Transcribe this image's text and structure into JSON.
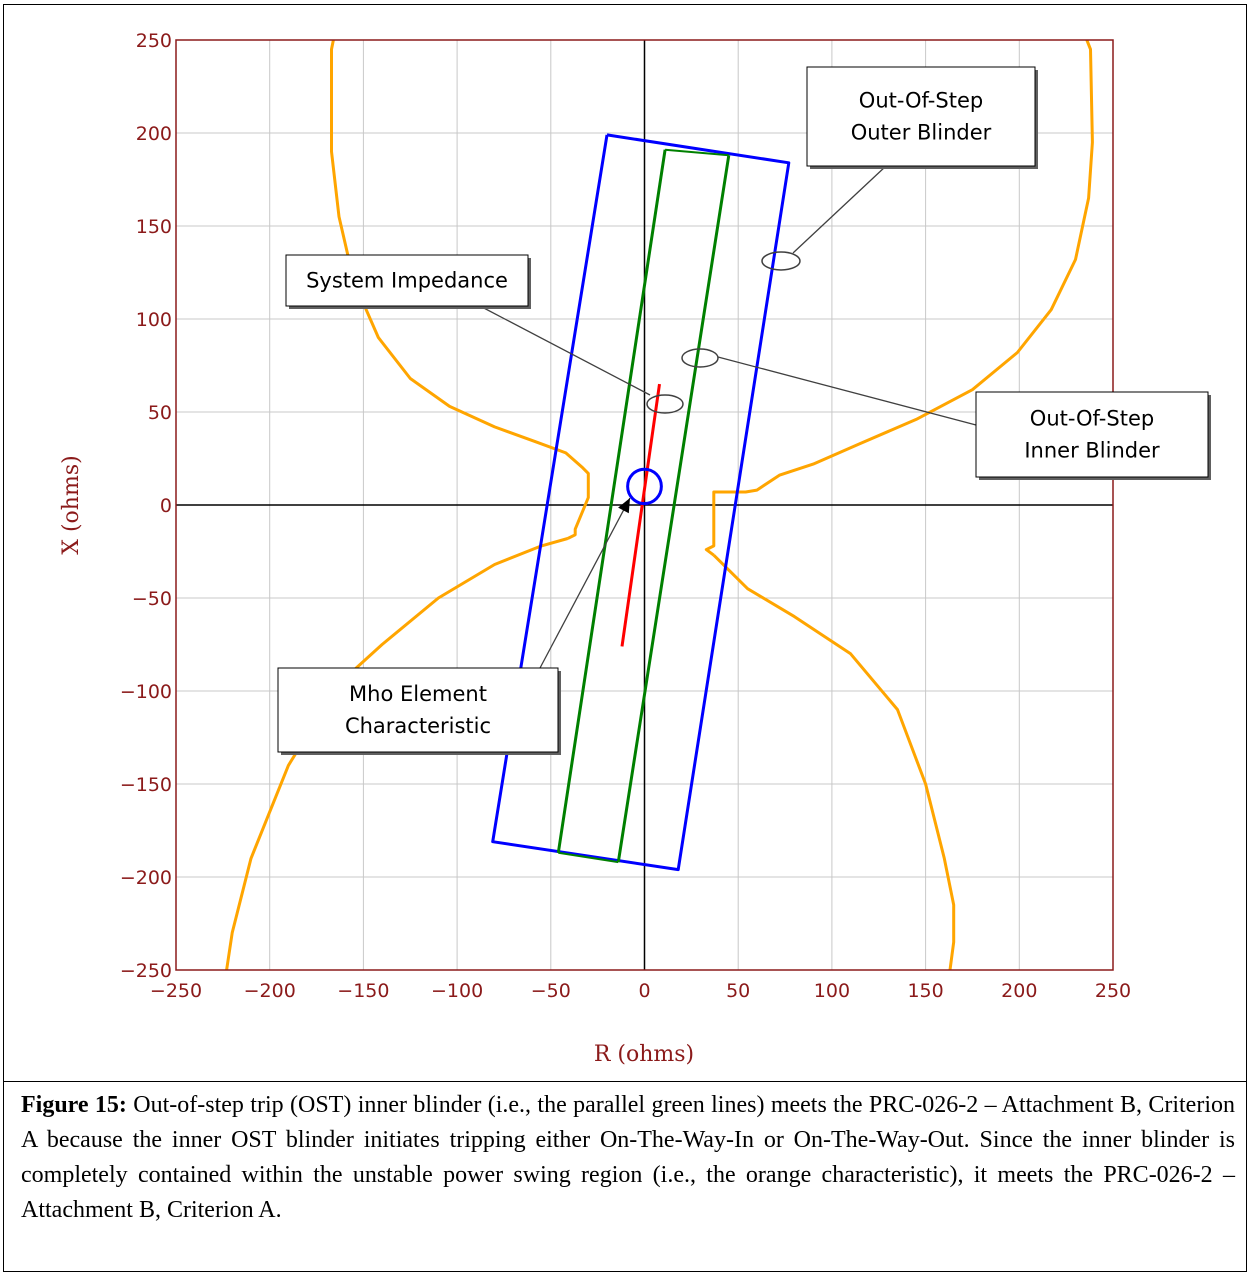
{
  "chart_data": {
    "type": "line",
    "title": "",
    "xlabel": "R (ohms)",
    "ylabel": "X (ohms)",
    "xlim": [
      -250,
      250
    ],
    "ylim": [
      -250,
      250
    ],
    "x_ticks": [
      "−250",
      "−200",
      "−150",
      "−100",
      "−50",
      "0",
      "50",
      "100",
      "150",
      "200",
      "250"
    ],
    "y_ticks": [
      "250",
      "200",
      "150",
      "100",
      "50",
      "0",
      "−50",
      "−100",
      "−150",
      "−200",
      "−250"
    ],
    "grid": true,
    "colors": {
      "unstable_region": "#FFA500",
      "outer_blinder": "#0000FF",
      "inner_blinder": "#008000",
      "system_impedance": "#FF0000",
      "mho": "#0000FF",
      "plot_border": "#8B1A1A",
      "grid": "#C8C8C8"
    },
    "series": [
      {
        "key": "unstable_upper",
        "x": [
          -166,
          -167,
          -167,
          -163,
          -155,
          -142,
          -125,
          -104,
          -80,
          -58,
          -42,
          -33,
          -30,
          -30,
          -37,
          -37,
          -41
        ],
        "y": [
          250,
          245,
          190,
          155,
          120,
          90,
          68,
          53,
          42,
          34,
          28,
          20,
          17,
          4,
          -13,
          -16,
          -18
        ]
      },
      {
        "key": "unstable_upper_right",
        "x": [
          236,
          238,
          239,
          237,
          230,
          217,
          199,
          175,
          145,
          115,
          90,
          72,
          60,
          54,
          37,
          37,
          33,
          37
        ],
        "y": [
          250,
          245,
          195,
          165,
          132,
          105,
          82,
          62,
          46,
          33,
          22,
          16,
          8,
          7,
          7,
          -22,
          -24,
          -27
        ]
      },
      {
        "key": "unstable_lower_left",
        "x": [
          -41,
          -55,
          -80,
          -110,
          -140,
          -163,
          -190,
          -210,
          -220,
          -223
        ],
        "y": [
          -18,
          -22,
          -32,
          -50,
          -75,
          -96,
          -140,
          -190,
          -230,
          -250
        ]
      },
      {
        "key": "unstable_lower_right",
        "x": [
          37,
          55,
          80,
          110,
          135,
          150,
          160,
          165,
          165,
          163
        ],
        "y": [
          -27,
          -45,
          -60,
          -80,
          -110,
          -150,
          -190,
          -215,
          -235,
          -250
        ]
      },
      {
        "key": "outer_blinder",
        "x": [
          -20,
          77,
          18,
          -81,
          -20
        ],
        "y": [
          199,
          184,
          -196,
          -181,
          199
        ]
      },
      {
        "key": "inner_blinder_left",
        "x": [
          11,
          -46
        ],
        "y": [
          191,
          -187
        ]
      },
      {
        "key": "inner_blinder_right",
        "x": [
          45,
          -14
        ],
        "y": [
          188,
          -192
        ]
      },
      {
        "key": "inner_blinder_top_edge",
        "x": [
          11,
          45
        ],
        "y": [
          191,
          188
        ]
      },
      {
        "key": "inner_blinder_bottom_edge",
        "x": [
          -46,
          -14
        ],
        "y": [
          -187,
          -192
        ]
      },
      {
        "key": "system_impedance",
        "x": [
          -12,
          8
        ],
        "y": [
          -76,
          65
        ]
      }
    ],
    "mho_circle": {
      "center": [
        0,
        10
      ],
      "radius": 9
    },
    "annotations": [
      {
        "key": "outer",
        "lines": [
          "Out-Of-Step",
          "Outer Blinder"
        ]
      },
      {
        "key": "system",
        "lines": [
          "System Impedance"
        ]
      },
      {
        "key": "inner",
        "lines": [
          "Out-Of-Step",
          "Inner Blinder"
        ]
      },
      {
        "key": "mho",
        "lines": [
          "Mho Element",
          "Characteristic"
        ]
      }
    ]
  },
  "caption": {
    "label": "Figure 15:",
    "text": " Out-of-step trip (OST) inner blinder (i.e., the parallel green lines) meets the PRC-026-2 – Attachment B, Criterion A because the inner OST blinder initiates tripping either On-The-Way-In or On-The-Way-Out. Since the inner blinder is completely contained within the unstable power swing region (i.e., the orange characteristic), it meets the PRC-026-2 – Attachment B, Criterion A."
  }
}
